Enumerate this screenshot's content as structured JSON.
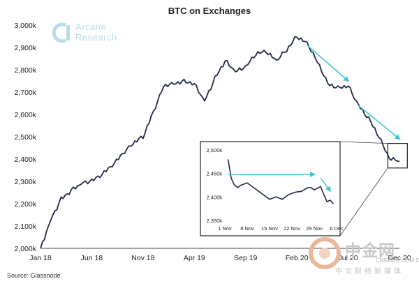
{
  "chart_data": [
    {
      "type": "line",
      "title": "BTC on Exchanges",
      "xlabel": "",
      "ylabel": "",
      "ylim": [
        2000,
        3000
      ],
      "y_tick_labels": [
        "2,000k",
        "2,100k",
        "2,200k",
        "2,300k",
        "2,400k",
        "2,500k",
        "2,600k",
        "2,700k",
        "2,800k",
        "2,900k",
        "3,000k"
      ],
      "y_ticks": [
        2000,
        2100,
        2200,
        2300,
        2400,
        2500,
        2600,
        2700,
        2800,
        2900,
        3000
      ],
      "x_tick_labels": [
        "Jan 18",
        "Jun 18",
        "Nov 18",
        "Apr 19",
        "Sep 19",
        "Feb 20",
        "Jul 20",
        "Dec 20"
      ],
      "x_ticks": [
        "2018-01",
        "2018-06",
        "2018-11",
        "2019-04",
        "2019-09",
        "2020-02",
        "2020-07",
        "2020-12"
      ],
      "xlim": [
        "2018-01",
        "2020-12"
      ],
      "grid": false,
      "line_color": "#1f2a44",
      "arrow_color": "#3ec6d0",
      "series": [
        {
          "x": [
            "2018-01",
            "2018-02",
            "2018-03",
            "2018-04",
            "2018-05",
            "2018-06",
            "2018-07",
            "2018-08",
            "2018-09",
            "2018-10",
            "2018-11",
            "2018-12",
            "2019-01",
            "2019-02",
            "2019-03",
            "2019-04",
            "2019-05",
            "2019-06",
            "2019-07",
            "2019-08",
            "2019-09",
            "2019-10",
            "2019-11",
            "2019-12",
            "2020-01",
            "2020-02",
            "2020-03",
            "2020-04",
            "2020-05",
            "2020-06",
            "2020-07",
            "2020-08",
            "2020-09",
            "2020-10",
            "2020-11",
            "2020-12"
          ],
          "values": [
            2000,
            2130,
            2220,
            2260,
            2290,
            2300,
            2330,
            2370,
            2420,
            2470,
            2500,
            2610,
            2730,
            2740,
            2750,
            2740,
            2660,
            2760,
            2840,
            2790,
            2810,
            2870,
            2880,
            2840,
            2890,
            2950,
            2920,
            2840,
            2740,
            2720,
            2730,
            2640,
            2580,
            2500,
            2400,
            2390
          ]
        }
      ],
      "arrows": [
        {
          "from": {
            "x": "2020-03",
            "y": 2910
          },
          "to": {
            "x": "2020-07",
            "y": 2750
          }
        },
        {
          "from": {
            "x": "2020-08",
            "y": 2640
          },
          "to": {
            "x": "2020-12",
            "y": 2490
          }
        }
      ]
    },
    {
      "type": "line",
      "title": "",
      "ylim": [
        2350,
        2500
      ],
      "y_tick_labels": [
        "2,350k",
        "2,400k",
        "2,450k",
        "2,500k"
      ],
      "y_ticks": [
        2350,
        2400,
        2450,
        2500
      ],
      "x_tick_labels": [
        "1 Nov",
        "8 Nov",
        "15 Nov",
        "22 Nov",
        "29 Nov",
        "6 Dec"
      ],
      "x_ticks": [
        1,
        8,
        15,
        22,
        29,
        36
      ],
      "xlim": [
        1,
        36
      ],
      "grid": false,
      "line_color": "#1f2a44",
      "arrow_color": "#3ec6d0",
      "series": [
        {
          "x": [
            2,
            3,
            4,
            5,
            6,
            8,
            10,
            12,
            13,
            15,
            17,
            19,
            21,
            23,
            25,
            27,
            28,
            29,
            31,
            32,
            33,
            34,
            35
          ],
          "values": [
            2480,
            2440,
            2425,
            2420,
            2425,
            2430,
            2420,
            2410,
            2405,
            2395,
            2400,
            2395,
            2405,
            2410,
            2412,
            2420,
            2420,
            2415,
            2422,
            2405,
            2390,
            2393,
            2385
          ]
        }
      ],
      "arrows": [
        {
          "from": {
            "x": 2,
            "y": 2448
          },
          "to": {
            "x": 29,
            "y": 2448
          }
        },
        {
          "from": {
            "x": 31,
            "y": 2440
          },
          "to": {
            "x": 34,
            "y": 2413
          }
        }
      ]
    }
  ],
  "header": {
    "title": "BTC on Exchanges"
  },
  "logo": {
    "line1": "Arcane",
    "line2": "Research",
    "color": "#b9dde8"
  },
  "source": "Source: Glassnode",
  "watermark": {
    "chinese": "中金网",
    "url": "CNGOLD.COM.CN",
    "sub": "中文财经新媒体",
    "color": "#c8c8c8"
  }
}
